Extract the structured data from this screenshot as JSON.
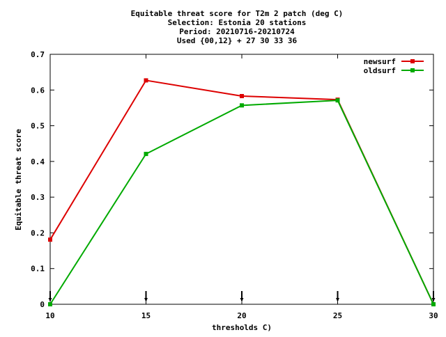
{
  "chart_data": {
    "type": "line",
    "title_lines": [
      "Equitable threat score  for T2m 2 patch (deg C)",
      "Selection: Estonia     20 stations",
      "Period: 20210716-20210724",
      "Used {00,12} + 27 30 33 36"
    ],
    "xlabel": "thresholds C)",
    "ylabel": "Equitable threat score",
    "xlim": [
      10,
      30
    ],
    "ylim": [
      0,
      0.7
    ],
    "xticks": [
      10,
      15,
      20,
      25,
      30
    ],
    "yticks": [
      0,
      0.1,
      0.2,
      0.3,
      0.4,
      0.5,
      0.6,
      0.7
    ],
    "xtick_labels": [
      "10",
      "15",
      "20",
      "25",
      "30"
    ],
    "ytick_labels": [
      "0",
      "0.1",
      "0.2",
      "0.3",
      "0.4",
      "0.5",
      "0.6",
      "0.7"
    ],
    "legend_position": "top-right",
    "grid": false,
    "x": [
      10,
      15,
      20,
      25,
      30
    ],
    "series": [
      {
        "name": "newsurf",
        "color": "#dd0000",
        "values": [
          0.181,
          0.627,
          0.583,
          0.573,
          0.0
        ]
      },
      {
        "name": "oldsurf",
        "color": "#00aa00",
        "values": [
          0.0,
          0.421,
          0.557,
          0.571,
          0.0
        ]
      }
    ],
    "count_markers_x": [
      10,
      15,
      20,
      25,
      30
    ]
  }
}
